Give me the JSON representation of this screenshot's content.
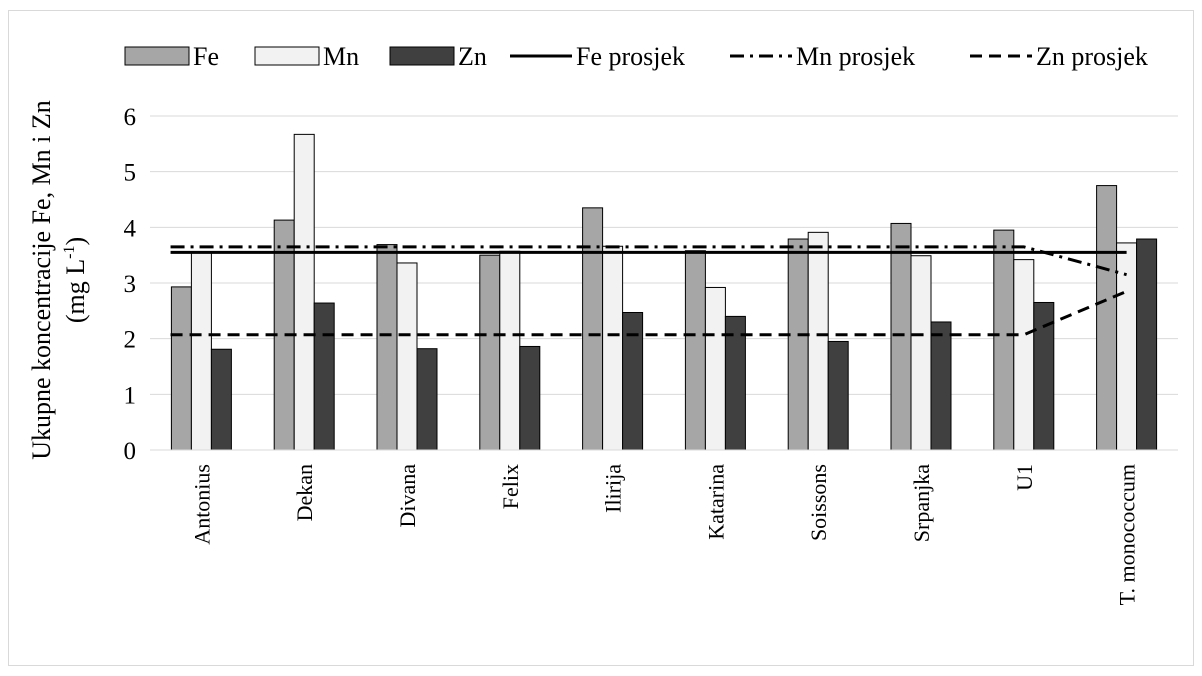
{
  "chart_data": {
    "type": "bar",
    "ylabel_line1": "Ukupne koncentracije Fe, Mn i Zn",
    "ylabel_line2_prefix": "(mg L",
    "ylabel_line2_sup": "-1",
    "ylabel_line2_suffix": ")",
    "ylim": [
      0,
      6
    ],
    "yticks": [
      "0",
      "1",
      "2",
      "3",
      "4",
      "5",
      "6"
    ],
    "grid": true,
    "legend_position": "top",
    "categories": [
      "Antonius",
      "Dekan",
      "Divana",
      "Felix",
      "Ilirija",
      "Katarina",
      "Soissons",
      "Srpanjka",
      "U1",
      "T. monococcum"
    ],
    "series": [
      {
        "name": "Fe",
        "color": "#a6a6a6",
        "values": [
          2.93,
          4.13,
          3.69,
          3.5,
          4.35,
          3.58,
          3.79,
          4.07,
          3.95,
          4.75
        ]
      },
      {
        "name": "Mn",
        "color": "#f2f2f2",
        "values": [
          3.55,
          5.67,
          3.36,
          3.57,
          3.66,
          2.92,
          3.91,
          3.49,
          3.42,
          3.72
        ]
      },
      {
        "name": "Zn",
        "color": "#404040",
        "values": [
          1.81,
          2.64,
          1.82,
          1.86,
          2.47,
          2.4,
          1.95,
          2.3,
          2.65,
          3.79
        ]
      }
    ],
    "average_lines": [
      {
        "name": "Fe prosjek",
        "style": "solid",
        "values": [
          3.55,
          3.55,
          3.55,
          3.55,
          3.55,
          3.55,
          3.55,
          3.55,
          3.55,
          3.55
        ]
      },
      {
        "name": "Mn prosjek",
        "style": "dashdot",
        "values": [
          3.65,
          3.65,
          3.65,
          3.65,
          3.65,
          3.65,
          3.65,
          3.65,
          3.65,
          3.15
        ]
      },
      {
        "name": "Zn prosjek",
        "style": "dash",
        "values": [
          2.07,
          2.07,
          2.07,
          2.07,
          2.07,
          2.07,
          2.07,
          2.07,
          2.07,
          2.85
        ]
      }
    ]
  }
}
